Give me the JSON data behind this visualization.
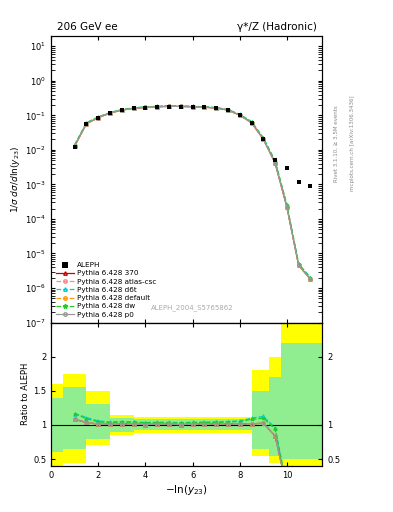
{
  "title_left": "206 GeV ee",
  "title_right": "γ*/Z (Hadronic)",
  "xlabel": "$-\\ln(y_{23})$",
  "ylabel_main": "$1/\\sigma\\;d\\sigma/d\\ln(y_{23})$",
  "ylabel_ratio": "Ratio to ALEPH",
  "watermark": "ALEPH_2004_S5765862",
  "right_label": "Rivet 3.1.10, ≥ 3.5M events",
  "right_label2": "mcplots.cern.ch [arXiv:1306.3436]",
  "aleph_x": [
    1.0,
    1.5,
    2.0,
    2.5,
    3.0,
    3.5,
    4.0,
    4.5,
    5.0,
    5.5,
    6.0,
    6.5,
    7.0,
    7.5,
    8.0,
    8.5,
    9.0,
    9.5,
    10.0,
    10.5,
    11.0
  ],
  "aleph_y": [
    0.012,
    0.055,
    0.085,
    0.115,
    0.14,
    0.158,
    0.168,
    0.175,
    0.18,
    0.18,
    0.175,
    0.17,
    0.16,
    0.14,
    0.1,
    0.06,
    0.02,
    0.005,
    0.003,
    0.0012,
    0.0009
  ],
  "mc_x": [
    1.0,
    1.5,
    2.0,
    2.5,
    3.0,
    3.5,
    4.0,
    4.5,
    5.0,
    5.5,
    6.0,
    6.5,
    7.0,
    7.5,
    8.0,
    8.5,
    9.0,
    9.5,
    10.0,
    10.5,
    11.0
  ],
  "pythia370_y": [
    0.013,
    0.057,
    0.086,
    0.116,
    0.142,
    0.16,
    0.169,
    0.177,
    0.182,
    0.181,
    0.177,
    0.172,
    0.162,
    0.142,
    0.101,
    0.061,
    0.0205,
    0.0042,
    0.00022,
    4.5e-06,
    1.8e-06
  ],
  "pythia_atlascsc_y": [
    0.013,
    0.057,
    0.086,
    0.116,
    0.142,
    0.16,
    0.169,
    0.177,
    0.182,
    0.181,
    0.177,
    0.172,
    0.162,
    0.142,
    0.101,
    0.061,
    0.0205,
    0.0042,
    0.00022,
    4.5e-06,
    1.8e-06
  ],
  "pythia_d6t_y": [
    0.014,
    0.061,
    0.09,
    0.12,
    0.147,
    0.165,
    0.174,
    0.182,
    0.187,
    0.186,
    0.182,
    0.177,
    0.167,
    0.147,
    0.106,
    0.066,
    0.0225,
    0.0048,
    0.00026,
    5e-06,
    2e-06
  ],
  "pythia_default_y": [
    0.013,
    0.057,
    0.086,
    0.116,
    0.142,
    0.16,
    0.169,
    0.177,
    0.182,
    0.181,
    0.177,
    0.172,
    0.162,
    0.142,
    0.101,
    0.061,
    0.0205,
    0.0042,
    0.00022,
    4.5e-06,
    1.8e-06
  ],
  "pythia_dw_y": [
    0.014,
    0.06,
    0.089,
    0.119,
    0.146,
    0.164,
    0.173,
    0.181,
    0.186,
    0.185,
    0.181,
    0.176,
    0.166,
    0.146,
    0.105,
    0.065,
    0.022,
    0.0047,
    0.00025,
    4.9e-06,
    1.95e-06
  ],
  "pythia_p0_y": [
    0.013,
    0.057,
    0.086,
    0.116,
    0.142,
    0.16,
    0.169,
    0.177,
    0.182,
    0.181,
    0.177,
    0.172,
    0.162,
    0.142,
    0.101,
    0.061,
    0.0205,
    0.0042,
    0.00022,
    4.5e-06,
    1.8e-06
  ],
  "colors": {
    "aleph": "#000000",
    "pythia370": "#cc0000",
    "atlascsc": "#ff8888",
    "d6t": "#00cccc",
    "default": "#ff9900",
    "dw": "#22cc22",
    "p0": "#999999"
  },
  "xlim": [
    0,
    11.5
  ],
  "ylim_main": [
    1e-07,
    20
  ],
  "ylim_ratio": [
    0.4,
    2.5
  ],
  "band_yellow_x": [
    0.0,
    0.5,
    0.5,
    1.5,
    1.5,
    2.5,
    2.5,
    3.5,
    3.5,
    4.5,
    4.5,
    5.5,
    5.5,
    6.5,
    6.5,
    7.5,
    7.5,
    8.5,
    8.5,
    9.25,
    9.25,
    9.75,
    9.75,
    10.25,
    10.25,
    11.5
  ],
  "band_yellow_lo": [
    0.4,
    0.4,
    0.45,
    0.45,
    0.7,
    0.7,
    0.85,
    0.85,
    0.88,
    0.88,
    0.88,
    0.88,
    0.88,
    0.88,
    0.88,
    0.88,
    0.88,
    0.88,
    0.55,
    0.55,
    0.45,
    0.45,
    0.4,
    0.4,
    0.4,
    0.4
  ],
  "band_yellow_hi": [
    1.6,
    1.6,
    1.75,
    1.75,
    1.5,
    1.5,
    1.15,
    1.15,
    1.12,
    1.12,
    1.12,
    1.12,
    1.12,
    1.12,
    1.12,
    1.12,
    1.12,
    1.12,
    1.8,
    1.8,
    2.0,
    2.0,
    2.5,
    2.5,
    2.5,
    2.5
  ],
  "band_green_x": [
    0.0,
    0.5,
    0.5,
    1.5,
    1.5,
    2.5,
    2.5,
    3.5,
    3.5,
    4.5,
    4.5,
    5.5,
    5.5,
    6.5,
    6.5,
    7.5,
    7.5,
    8.5,
    8.5,
    9.25,
    9.25,
    9.75,
    9.75,
    10.25,
    10.25,
    11.5
  ],
  "band_green_lo": [
    0.6,
    0.6,
    0.65,
    0.65,
    0.8,
    0.8,
    0.9,
    0.9,
    0.92,
    0.92,
    0.92,
    0.92,
    0.92,
    0.92,
    0.92,
    0.92,
    0.92,
    0.92,
    0.65,
    0.65,
    0.55,
    0.55,
    0.5,
    0.5,
    0.5,
    0.5
  ],
  "band_green_hi": [
    1.4,
    1.4,
    1.55,
    1.55,
    1.3,
    1.3,
    1.1,
    1.1,
    1.08,
    1.08,
    1.08,
    1.08,
    1.08,
    1.08,
    1.08,
    1.08,
    1.08,
    1.08,
    1.5,
    1.5,
    1.7,
    1.7,
    2.2,
    2.2,
    2.2,
    2.2
  ]
}
